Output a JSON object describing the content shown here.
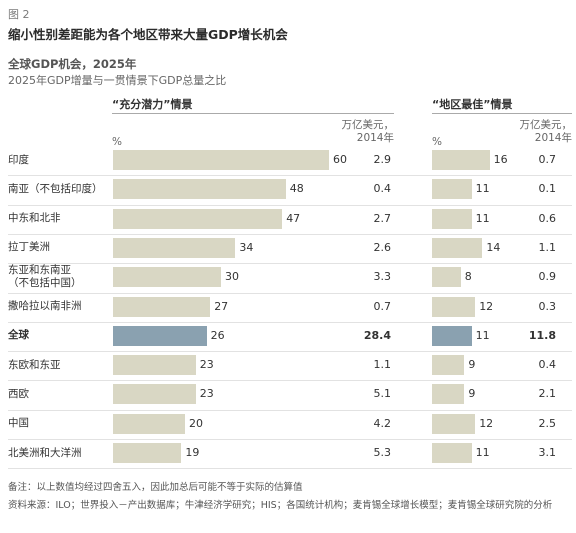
{
  "figure_label": "图 2",
  "title": "缩小性别差距能为各个地区带来大量GDP增长机会",
  "subtitle_1": "全球GDP机会，2025年",
  "subtitle_2": "2025年GDP增量与一贯情景下GDP总量之比",
  "left_panel": {
    "header": "“充分潜力”情景",
    "unit_pct": "%",
    "unit_value": "万亿美元，\n2014年"
  },
  "right_panel": {
    "header": "“地区最佳”情景",
    "unit_pct": "%",
    "unit_value": "万亿美元，\n2014年"
  },
  "chart_data": [
    {
      "type": "bar",
      "orientation": "horizontal",
      "title": "“充分潜力”情景",
      "categories": [
        "印度",
        "南亚（不包括印度）",
        "中东和北非",
        "拉丁美洲",
        "东亚和东南亚\n（不包括中国）",
        "撒哈拉以南非洲",
        "全球",
        "东欧和东亚",
        "西欧",
        "中国",
        "北美洲和大洋洲"
      ],
      "values": [
        60,
        48,
        47,
        34,
        30,
        27,
        26,
        23,
        23,
        20,
        19
      ],
      "values_label": "%",
      "trillion_usd": [
        "2.9",
        "0.4",
        "2.7",
        "2.6",
        "3.3",
        "0.7",
        "28.4",
        "1.1",
        "5.1",
        "4.2",
        "5.3"
      ],
      "trillion_usd_label": "万亿美元，2014年",
      "highlight_index": 6,
      "xlim": [
        0,
        60
      ],
      "colors": {
        "bar": "#d9d7c4",
        "highlight": "#8aa1b0"
      }
    },
    {
      "type": "bar",
      "orientation": "horizontal",
      "title": "“地区最佳”情景",
      "categories": [
        "印度",
        "南亚（不包括印度）",
        "中东和北非",
        "拉丁美洲",
        "东亚和东南亚\n（不包括中国）",
        "撒哈拉以南非洲",
        "全球",
        "东欧和东亚",
        "西欧",
        "中国",
        "北美洲和大洋洲"
      ],
      "values": [
        16,
        11,
        11,
        14,
        8,
        12,
        11,
        9,
        9,
        12,
        11
      ],
      "values_label": "%",
      "trillion_usd": [
        "0.7",
        "0.1",
        "0.6",
        "1.1",
        "0.9",
        "0.3",
        "11.8",
        "0.4",
        "2.1",
        "2.5",
        "3.1"
      ],
      "trillion_usd_label": "万亿美元，2014年",
      "highlight_index": 6,
      "xlim": [
        0,
        60
      ],
      "colors": {
        "bar": "#d9d7c4",
        "highlight": "#8aa1b0"
      }
    }
  ],
  "notes": {
    "note": "备注：以上数值均经过四舍五入，因此加总后可能不等于实际的估算值",
    "source": "资料来源：ILO；世界投入－产出数据库；牛津经济学研究；HIS；各国统计机构；麦肯锡全球增长模型；麦肯锡全球研究院的分析"
  }
}
